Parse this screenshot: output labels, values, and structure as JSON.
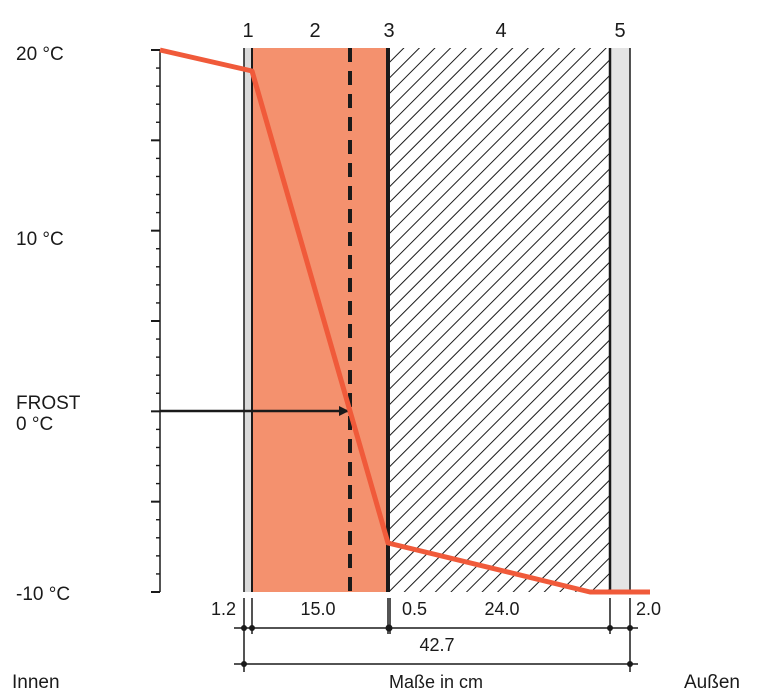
{
  "temperature_scale": {
    "label_20": "20 °C",
    "label_10": "10 °C",
    "frost_label": "FROST",
    "label_0": "0 °C",
    "label_minus10": "-10 °C"
  },
  "layers": [
    {
      "number": "1",
      "thickness": "1.2",
      "fill": "#d9d9d9"
    },
    {
      "number": "2",
      "thickness": "15.0",
      "fill": "#f4916e"
    },
    {
      "number": "3",
      "thickness": "0.5",
      "fill": "#1a1a1a"
    },
    {
      "number": "4",
      "thickness": "24.0",
      "fill": "hatched"
    },
    {
      "number": "5",
      "thickness": "2.0",
      "fill": "#e4e4e4"
    }
  ],
  "total_thickness": "42.7",
  "units_label": "Maße in cm",
  "side_labels": {
    "inside": "Innen",
    "outside": "Außen"
  },
  "colors": {
    "temperature_curve": "#f05a3a",
    "insulation": "#f4916e",
    "outline": "#1a1a1a"
  }
}
